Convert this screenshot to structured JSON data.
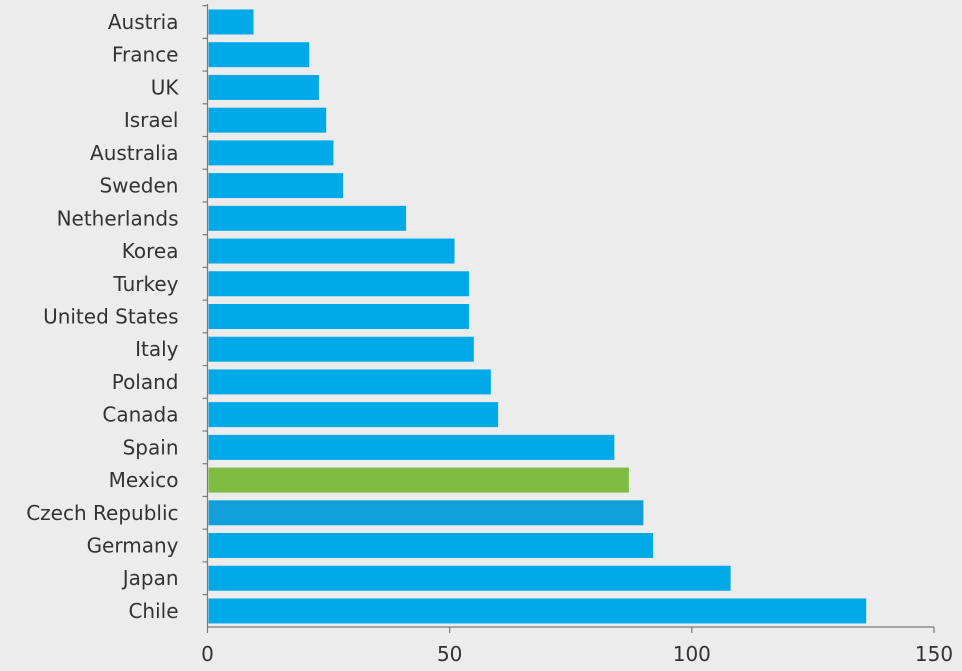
{
  "chart_data": {
    "type": "bar",
    "orientation": "horizontal",
    "categories": [
      "Austria",
      "France",
      "UK",
      "Israel",
      "Australia",
      "Sweden",
      "Netherlands",
      "Korea",
      "Turkey",
      "United States",
      "Italy",
      "Poland",
      "Canada",
      "Spain",
      "Mexico",
      "Czech Republic",
      "Germany",
      "Japan",
      "Chile"
    ],
    "values": [
      9.5,
      21,
      23,
      24.5,
      26,
      28,
      41,
      51,
      54,
      54,
      55,
      58.5,
      60,
      84,
      87,
      90,
      92,
      108,
      136
    ],
    "bar_colors": [
      "#00a9e8",
      "#00a9e8",
      "#00a9e8",
      "#00a9e8",
      "#00a9e8",
      "#00a9e8",
      "#00a9e8",
      "#00a9e8",
      "#00a9e8",
      "#00a9e8",
      "#00a9e8",
      "#00a9e8",
      "#00a9e8",
      "#00a9e8",
      "#7fbc41",
      "#119fd9",
      "#00a9e8",
      "#00a9e8",
      "#00a9e8"
    ],
    "xlim": [
      0,
      150
    ],
    "xticks": [
      0,
      50,
      100,
      150
    ],
    "title": "",
    "xlabel": "",
    "ylabel": "",
    "grid": false,
    "legend": "none"
  }
}
